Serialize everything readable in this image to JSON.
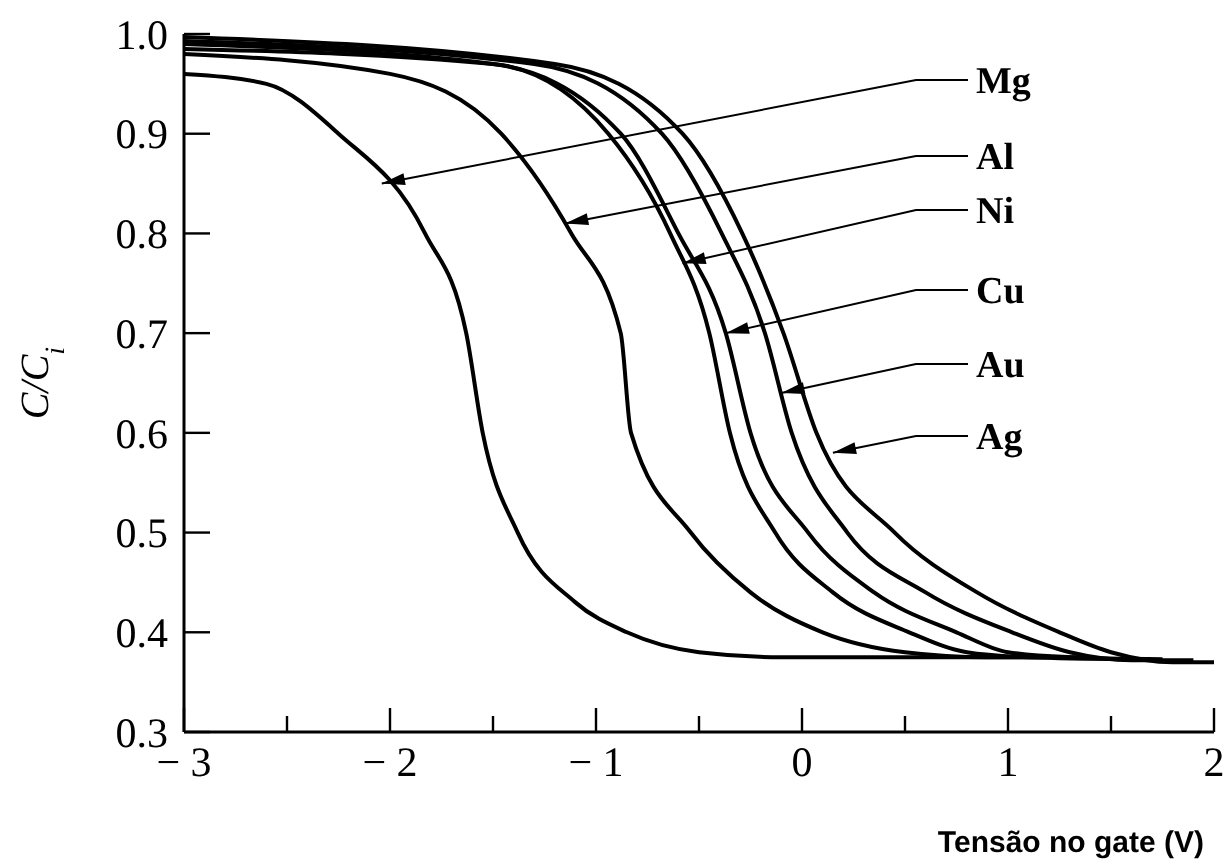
{
  "chart_data": {
    "type": "line",
    "xlabel": "Tensão no gate (V)",
    "ylabel": "C/C$_{i}$",
    "xlim": [
      -3,
      2
    ],
    "ylim": [
      0.3,
      1.0
    ],
    "xticks": [
      {
        "value": -3,
        "label": "− 3"
      },
      {
        "value": -2.5,
        "label": null
      },
      {
        "value": -2,
        "label": "− 2"
      },
      {
        "value": -1.5,
        "label": null
      },
      {
        "value": -1,
        "label": "− 1"
      },
      {
        "value": -0.5,
        "label": null
      },
      0,
      {
        "value": 0.5,
        "label": null
      },
      1,
      {
        "value": 1.5,
        "label": null
      },
      2
    ],
    "yticks": [
      {
        "value": 0.3,
        "label": "0.3"
      },
      {
        "value": 0.4,
        "label": "0.4"
      },
      {
        "value": 0.5,
        "label": "0.5"
      },
      {
        "value": 0.6,
        "label": "0.6"
      },
      {
        "value": 0.7,
        "label": "0.7"
      },
      {
        "value": 0.8,
        "label": "0.8"
      },
      {
        "value": 0.9,
        "label": "0.9"
      },
      {
        "value": 1.0,
        "label": "1.0"
      }
    ],
    "annotations": [
      {
        "text": "Mg",
        "x": -2.04,
        "y": 0.85
      },
      {
        "text": "Al",
        "x": -1.15,
        "y": 0.81
      },
      {
        "text": "Ni",
        "x": -0.58,
        "y": 0.77
      },
      {
        "text": "Cu",
        "x": -0.37,
        "y": 0.7
      },
      {
        "text": "Au",
        "x": -0.1,
        "y": 0.64
      },
      {
        "text": "Ag",
        "x": 0.15,
        "y": 0.58
      }
    ],
    "grid": false,
    "marker": "none",
    "line_style": "solid",
    "series": [
      {
        "color": "#000000",
        "x": [
          -3,
          -2.6,
          -2.25,
          -1.83,
          -1.63,
          -1.55,
          -1.38,
          -1.1,
          -0.85,
          -0.5,
          -0.1,
          1.2
        ],
        "values": [
          0.96,
          0.95,
          0.9,
          0.8,
          0.7,
          0.6,
          0.5,
          0.43,
          0.4,
          0.38,
          0.375,
          0.375
        ]
      },
      {
        "color": "#000000",
        "x": [
          -3,
          -2,
          -1.46,
          -1.12,
          -0.88,
          -0.83,
          -0.54,
          -0.25,
          0.1,
          0.5,
          0.9,
          1.4
        ],
        "values": [
          0.98,
          0.96,
          0.9,
          0.8,
          0.7,
          0.6,
          0.5,
          0.44,
          0.4,
          0.38,
          0.375,
          0.375
        ]
      },
      {
        "color": "#000000",
        "x": [
          -3,
          -1.5,
          -0.94,
          -0.64,
          -0.45,
          -0.35,
          -0.13,
          0.15,
          0.52,
          0.8,
          1.1,
          1.6
        ],
        "values": [
          0.985,
          0.97,
          0.9,
          0.8,
          0.7,
          0.6,
          0.5,
          0.44,
          0.4,
          0.38,
          0.375,
          0.373
        ]
      },
      {
        "color": "#000000",
        "x": [
          -3,
          -1.5,
          -0.88,
          -0.6,
          -0.37,
          -0.25,
          0.03,
          0.35,
          0.75,
          1.0,
          1.3,
          1.75
        ],
        "values": [
          0.99,
          0.97,
          0.9,
          0.8,
          0.7,
          0.6,
          0.5,
          0.44,
          0.4,
          0.38,
          0.375,
          0.373
        ]
      },
      {
        "color": "#000000",
        "x": [
          -3,
          -1.3,
          -0.68,
          -0.39,
          -0.18,
          -0.05,
          0.22,
          0.6,
          1.02,
          1.3,
          1.6,
          1.9
        ],
        "values": [
          0.993,
          0.97,
          0.9,
          0.8,
          0.7,
          0.6,
          0.5,
          0.44,
          0.4,
          0.38,
          0.372,
          0.372
        ]
      },
      {
        "color": "#000000",
        "x": [
          -3,
          -1.2,
          -0.58,
          -0.29,
          -0.09,
          0.07,
          0.45,
          0.85,
          1.25,
          1.5,
          1.8,
          2
        ],
        "values": [
          0.997,
          0.97,
          0.9,
          0.8,
          0.7,
          0.6,
          0.5,
          0.44,
          0.4,
          0.38,
          0.37,
          0.37
        ]
      }
    ]
  }
}
